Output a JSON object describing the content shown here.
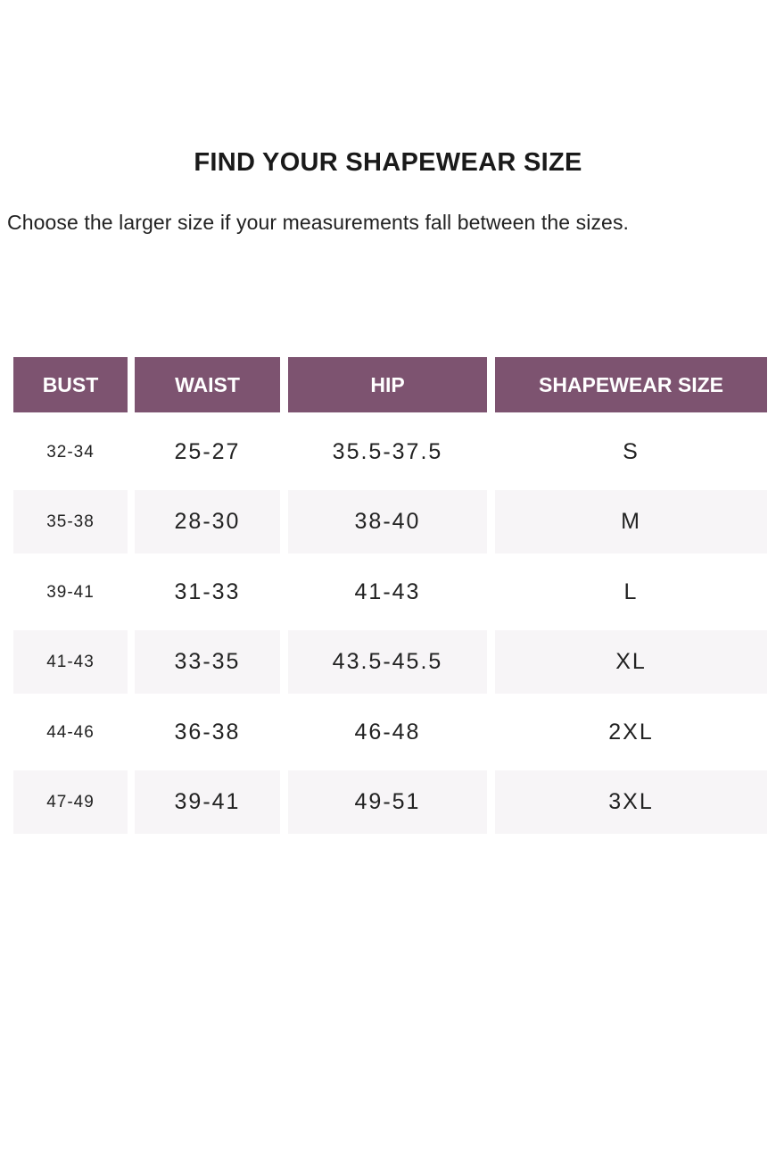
{
  "title": "FIND YOUR SHAPEWEAR SIZE",
  "subtitle": "Choose the larger size if your measurements fall between the sizes.",
  "colors": {
    "header_bg": "#7d5370",
    "header_text": "#ffffff",
    "stripe_bg": "#f7f5f7"
  },
  "table": {
    "headers": [
      "BUST",
      "WAIST",
      "HIP",
      "SHAPEWEAR SIZE"
    ],
    "rows": [
      [
        "32-34",
        "25-27",
        "35.5-37.5",
        "S"
      ],
      [
        "35-38",
        "28-30",
        "38-40",
        "M"
      ],
      [
        "39-41",
        "31-33",
        "41-43",
        "L"
      ],
      [
        "41-43",
        "33-35",
        "43.5-45.5",
        "XL"
      ],
      [
        "44-46",
        "36-38",
        "46-48",
        "2XL"
      ],
      [
        "47-49",
        "39-41",
        "49-51",
        "3XL"
      ]
    ]
  }
}
